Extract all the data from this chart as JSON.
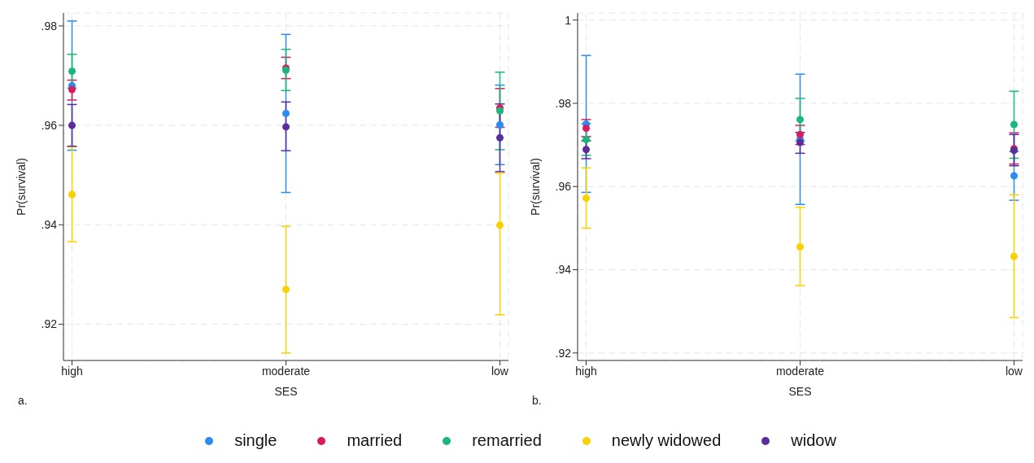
{
  "chart_data": [
    {
      "type": "scatter",
      "xlabel": "SES",
      "ylabel": "Pr(survival)",
      "annotations": [
        "a."
      ],
      "categories": [
        "high",
        "moderate",
        "low"
      ],
      "ylim": [
        0.9127,
        0.9826
      ],
      "yticks": [
        {
          "value": 0.92,
          "label": ".92"
        },
        {
          "value": 0.94,
          "label": ".94"
        },
        {
          "value": 0.96,
          "label": ".96"
        },
        {
          "value": 0.98,
          "label": ".98"
        }
      ],
      "grid": true,
      "legend": "bottom",
      "marker": "circle",
      "series": [
        {
          "name": "single",
          "color": "#2b8cf0",
          "values": [
            0.968,
            0.9624,
            0.9601
          ],
          "errors": [
            [
              0.955,
              0.981
            ],
            [
              0.9465,
              0.9783
            ],
            [
              0.9521,
              0.9681
            ]
          ]
        },
        {
          "name": "married",
          "color": "#d81b60",
          "values": [
            0.9672,
            0.9715,
            0.9635
          ],
          "errors": [
            [
              0.9651,
              0.9691
            ],
            [
              0.9694,
              0.9737
            ],
            [
              0.9596,
              0.9674
            ]
          ]
        },
        {
          "name": "remarried",
          "color": "#1ab77b",
          "values": [
            0.9709,
            0.9711,
            0.9629
          ],
          "errors": [
            [
              0.9675,
              0.9743
            ],
            [
              0.967,
              0.9753
            ],
            [
              0.9551,
              0.9707
            ]
          ]
        },
        {
          "name": "newly widowed",
          "color": "#f9d000",
          "values": [
            0.9461,
            0.927,
            0.9399
          ],
          "errors": [
            [
              0.9366,
              0.9557
            ],
            [
              0.9142,
              0.9397
            ],
            [
              0.9219,
              0.9504
            ]
          ]
        },
        {
          "name": "widow",
          "color": "#5a2d9c",
          "values": [
            0.96,
            0.9597,
            0.9575
          ],
          "errors": [
            [
              0.9558,
              0.9642
            ],
            [
              0.9549,
              0.9647
            ],
            [
              0.9507,
              0.9643
            ]
          ]
        }
      ]
    },
    {
      "type": "scatter",
      "xlabel": "SES",
      "ylabel": "Pr(survival)",
      "annotations": [
        "b."
      ],
      "categories": [
        "high",
        "moderate",
        "low"
      ],
      "ylim": [
        0.9182,
        1.0017
      ],
      "yticks": [
        {
          "value": 0.92,
          "label": ".92"
        },
        {
          "value": 0.94,
          "label": ".94"
        },
        {
          "value": 0.96,
          "label": ".96"
        },
        {
          "value": 0.98,
          "label": ".98"
        },
        1
      ],
      "grid": true,
      "marker": "circle",
      "series": [
        {
          "color": "#2b8cf0",
          "values": [
            0.975,
            0.9714,
            0.9626
          ],
          "errors": [
            [
              0.9586,
              0.9915
            ],
            [
              0.9557,
              0.987
            ],
            [
              0.9567,
              0.9684
            ]
          ]
        },
        {
          "color": "#d81b60",
          "values": [
            0.974,
            0.9725,
            0.9691
          ],
          "errors": [
            [
              0.972,
              0.9761
            ],
            [
              0.9701,
              0.9747
            ],
            [
              0.9654,
              0.9729
            ]
          ]
        },
        {
          "color": "#1ab77b",
          "values": [
            0.9713,
            0.9761,
            0.9749
          ],
          "errors": [
            [
              0.9675,
              0.9751
            ],
            [
              0.971,
              0.9812
            ],
            [
              0.9668,
              0.9829
            ]
          ]
        },
        {
          "color": "#f9d000",
          "values": [
            0.9572,
            0.9455,
            0.9432
          ],
          "errors": [
            [
              0.95,
              0.9645
            ],
            [
              0.9362,
              0.955
            ],
            [
              0.9285,
              0.958
            ]
          ]
        },
        {
          "color": "#5a2d9c",
          "values": [
            0.9689,
            0.9706,
            0.9687
          ],
          "errors": [
            [
              0.9667,
              0.971
            ],
            [
              0.968,
              0.973
            ],
            [
              0.965,
              0.9725
            ]
          ]
        }
      ]
    }
  ]
}
